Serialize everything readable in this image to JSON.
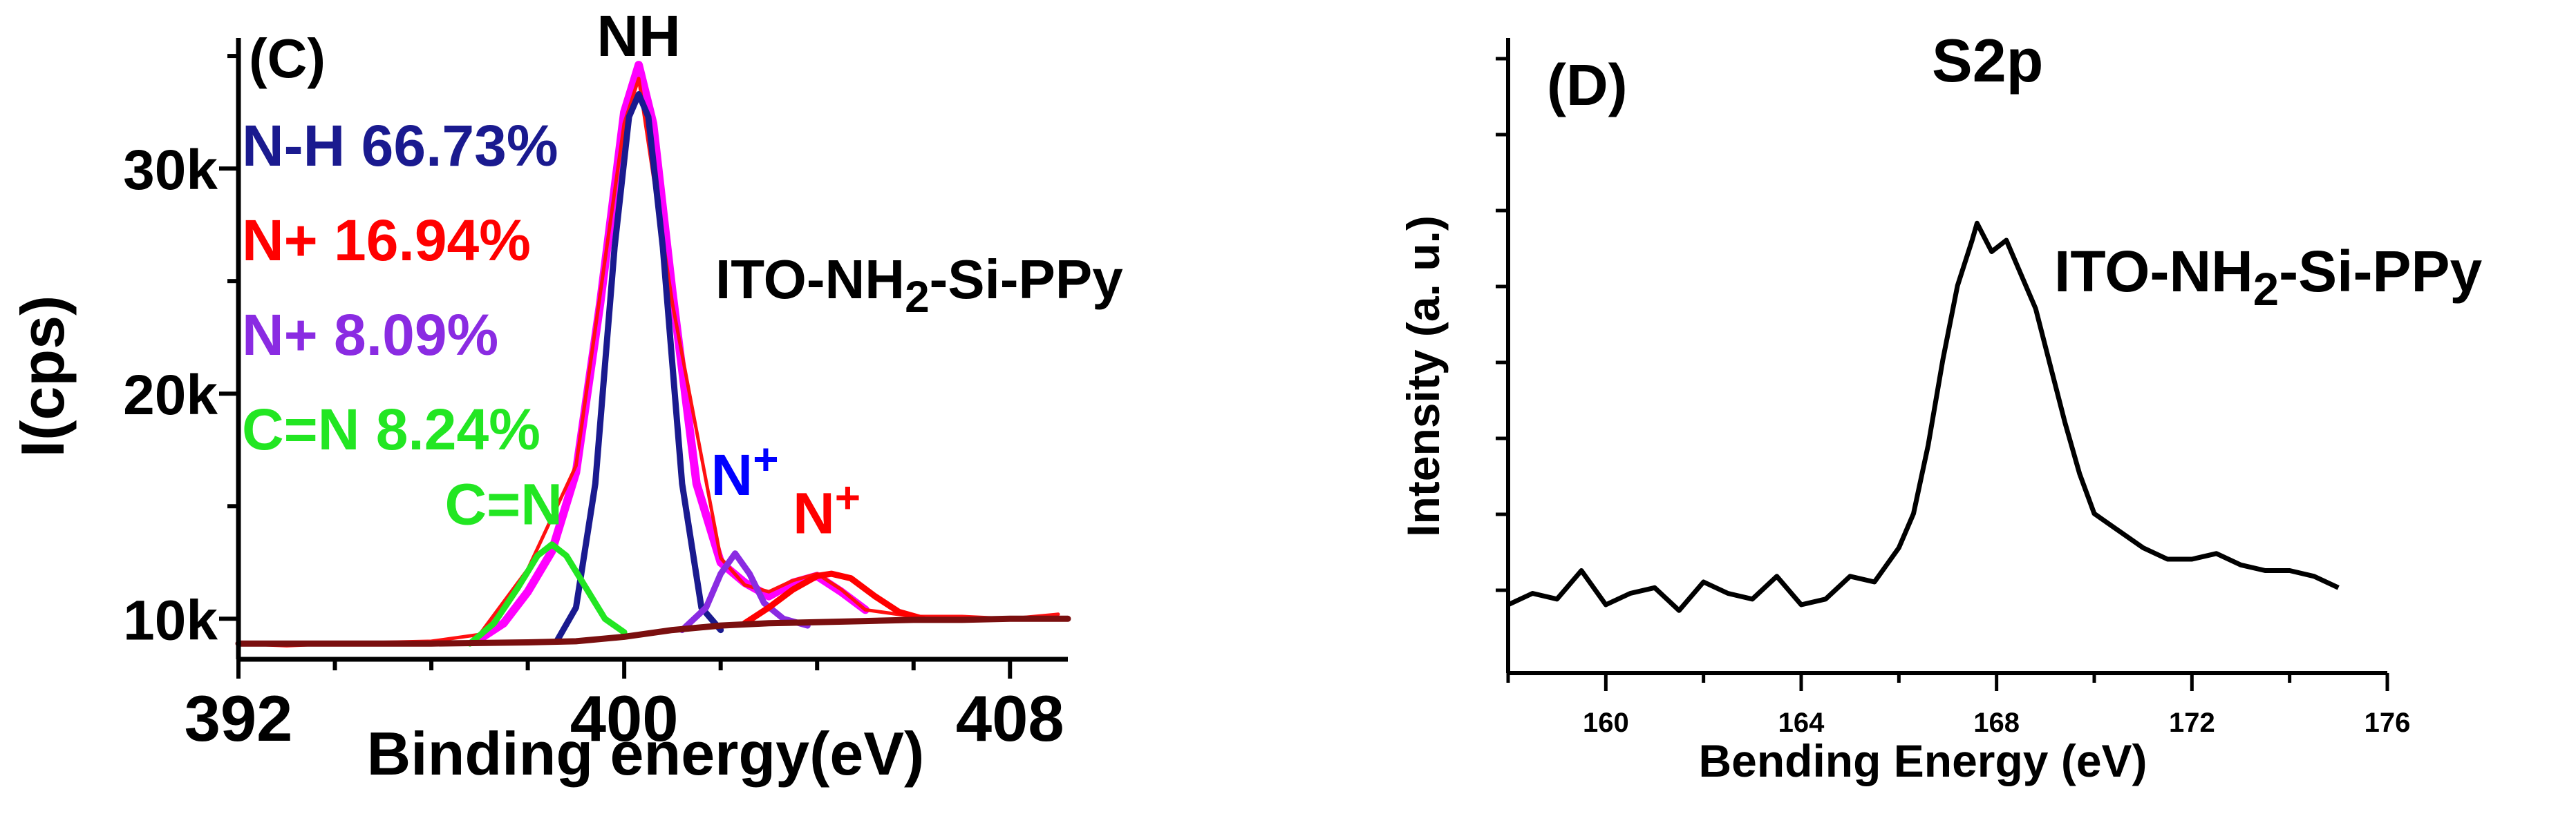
{
  "chart_data": [
    {
      "type": "line",
      "panel_label": "(C)",
      "sample_label": "ITO-NH2-Si-PPy",
      "xlabel": "Binding energy(eV)",
      "ylabel": "I(cps)",
      "xlim": [
        392,
        409.2
      ],
      "ylim": [
        8200,
        35800
      ],
      "x_ticks": [
        392,
        400,
        408
      ],
      "y_ticks": [
        10000,
        20000,
        30000
      ],
      "y_tick_labels": [
        "10k",
        "20k",
        "30k"
      ],
      "legend": [
        {
          "text": "N-H 66.73%",
          "color": "#1a1a8f"
        },
        {
          "text": "N+ 16.94%",
          "color": "#ff0000"
        },
        {
          "text": "N+ 8.09%",
          "color": "#8a2be2"
        },
        {
          "text": "C=N 8.24%",
          "color": "#22e622"
        }
      ],
      "peak_labels": [
        {
          "text": "NH",
          "x": 400.3,
          "y": 35000,
          "color": "#000000"
        },
        {
          "text": "C=N",
          "x": 397.5,
          "y": 14200,
          "color": "#22e622"
        },
        {
          "text": "N+",
          "x": 402.5,
          "y": 15500,
          "color": "#0000ff"
        },
        {
          "text": "N+",
          "x": 404.2,
          "y": 13800,
          "color": "#ff0000"
        }
      ],
      "series": [
        {
          "role": "envelope",
          "color": "#ff00ff",
          "x": [
            397.0,
            397.5,
            398.0,
            398.5,
            399.0,
            399.5,
            400.0,
            400.3,
            400.6,
            401.0,
            401.5,
            402.0,
            402.5,
            403.0,
            403.5,
            404.0,
            404.5,
            405.0
          ],
          "values": [
            9100,
            9800,
            11200,
            13000,
            16500,
            24000,
            32500,
            34600,
            32000,
            24500,
            16000,
            12500,
            11600,
            11000,
            11600,
            11900,
            11200,
            10400
          ]
        },
        {
          "role": "raw",
          "color": "#ff1010",
          "x": [
            392.0,
            393.0,
            394.0,
            395.0,
            396.0,
            397.0,
            398.0,
            399.0,
            400.0,
            400.3,
            401.0,
            402.0,
            402.5,
            403.0,
            403.5,
            404.0,
            404.5,
            405.0,
            406.0,
            407.0,
            408.0,
            409.0
          ],
          "values": [
            8900,
            8800,
            8900,
            8950,
            9000,
            9300,
            12200,
            16800,
            32000,
            34000,
            24000,
            12700,
            11500,
            11200,
            11700,
            12000,
            11300,
            10400,
            10100,
            10100,
            10000,
            10200
          ]
        },
        {
          "role": "N-H",
          "color": "#1a1a8f",
          "x": [
            398.6,
            399.0,
            399.4,
            399.8,
            400.1,
            400.3,
            400.5,
            400.8,
            401.2,
            401.6,
            402.0
          ],
          "values": [
            9000,
            10500,
            16000,
            26500,
            32300,
            33300,
            32300,
            26500,
            16000,
            10500,
            9500
          ]
        },
        {
          "role": "C=N",
          "color": "#22e622",
          "x": [
            396.8,
            397.3,
            397.8,
            398.2,
            398.5,
            398.8,
            399.2,
            399.6,
            400.0
          ],
          "values": [
            8900,
            9800,
            11400,
            12800,
            13300,
            12800,
            11400,
            10000,
            9400
          ]
        },
        {
          "role": "N+ (purple)",
          "color": "#8a2be2",
          "x": [
            401.2,
            401.7,
            402.0,
            402.3,
            402.6,
            402.9,
            403.3,
            403.8
          ],
          "values": [
            9500,
            10500,
            12000,
            12900,
            12000,
            10700,
            10000,
            9700
          ]
        },
        {
          "role": "N+ (red)",
          "color": "#ff0000",
          "x": [
            402.5,
            403.0,
            403.5,
            404.0,
            404.3,
            404.7,
            405.2,
            405.7,
            406.2
          ],
          "values": [
            9800,
            10500,
            11300,
            11900,
            12000,
            11800,
            11000,
            10300,
            10000
          ]
        },
        {
          "role": "baseline",
          "color": "#7a0f0f",
          "x": [
            392,
            396,
            398,
            399,
            400,
            401,
            402,
            403,
            404,
            405,
            406,
            407,
            408,
            409.2
          ],
          "values": [
            8900,
            8900,
            8950,
            9000,
            9200,
            9500,
            9700,
            9800,
            9850,
            9900,
            9950,
            9950,
            10000,
            10000
          ]
        }
      ]
    },
    {
      "type": "line",
      "panel_label": "(D)",
      "peak_label": "S2p",
      "sample_label": "ITO-NH2-Si-PPy",
      "xlabel": "Bending Energy (eV)",
      "ylabel": "Intensity (a. u.)",
      "xlim": [
        158,
        176
      ],
      "ylim": [
        0,
        100
      ],
      "x_ticks": [
        160,
        164,
        168,
        172,
        176
      ],
      "y_ticks": [],
      "series": [
        {
          "color": "#000000",
          "x": [
            158.0,
            158.5,
            159.0,
            159.5,
            160.0,
            160.5,
            161.0,
            161.5,
            162.0,
            162.5,
            163.0,
            163.5,
            164.0,
            164.5,
            165.0,
            165.5,
            166.0,
            166.3,
            166.6,
            166.9,
            167.2,
            167.5,
            167.6,
            167.9,
            168.2,
            168.5,
            168.8,
            169.1,
            169.4,
            169.7,
            170.0,
            170.5,
            171.0,
            171.5,
            172.0,
            172.5,
            173.0,
            173.5,
            174.0,
            174.5,
            175.0
          ],
          "values": [
            12,
            14,
            13,
            18,
            12,
            14,
            15,
            11,
            16,
            14,
            13,
            17,
            12,
            13,
            17,
            16,
            22,
            28,
            40,
            55,
            68,
            76,
            79,
            74,
            76,
            70,
            64,
            54,
            44,
            35,
            28,
            25,
            22,
            20,
            20,
            21,
            19,
            18,
            18,
            17,
            15
          ]
        }
      ]
    }
  ]
}
